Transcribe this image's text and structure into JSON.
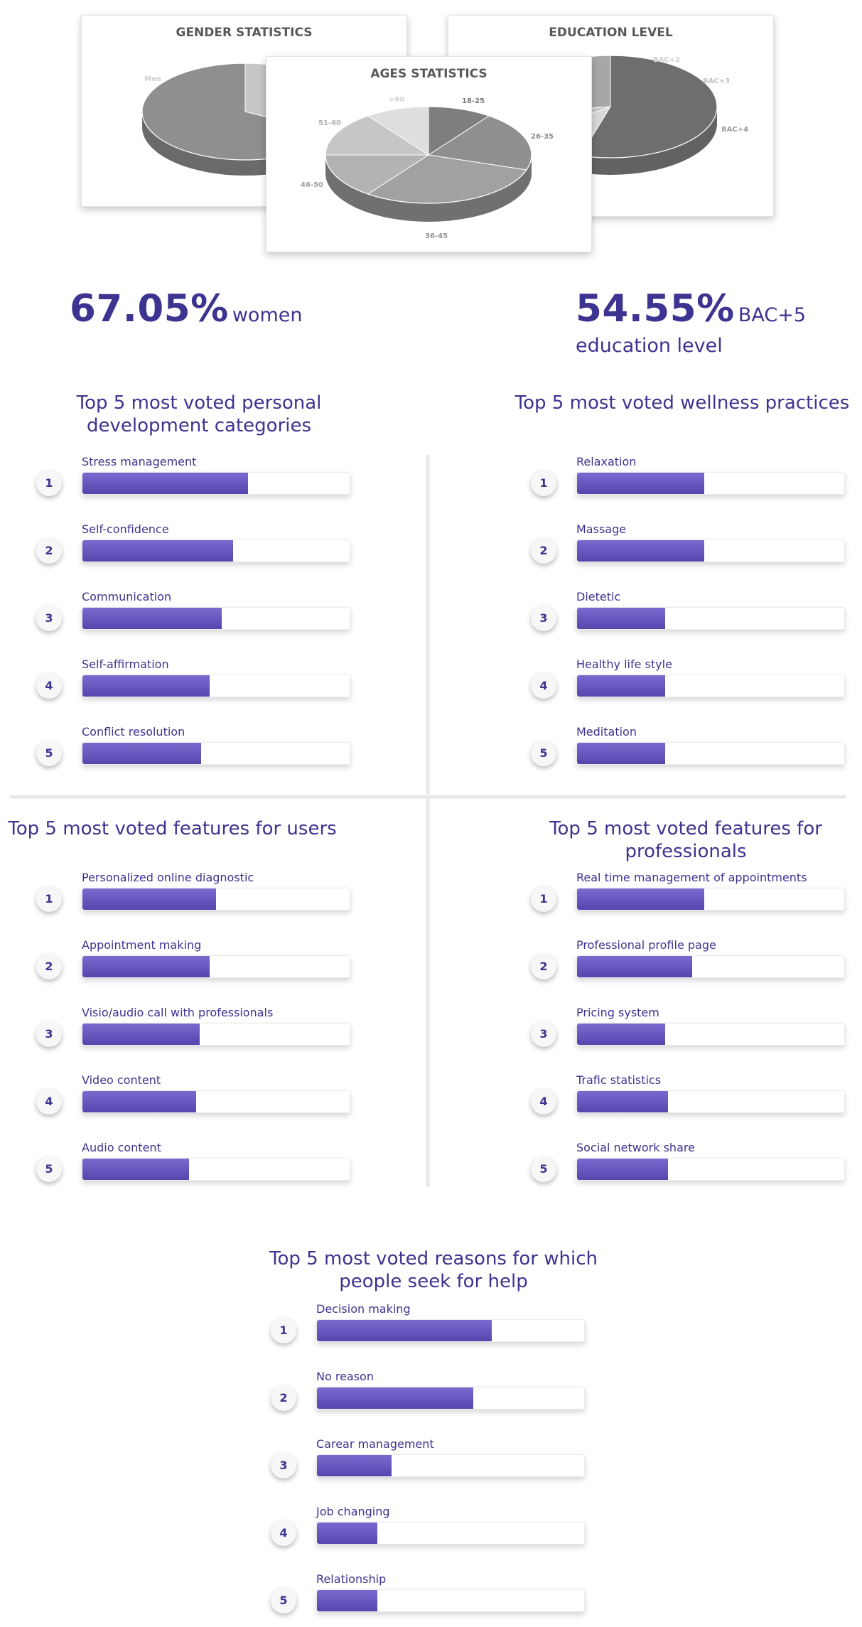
{
  "colors": {
    "primary": "#3d3390",
    "bar": "#5f4fbd",
    "pie_gray": "#9a9a9a"
  },
  "cards": {
    "gender": {
      "title": "GENDER STATISTICS",
      "labels": [
        "Men"
      ]
    },
    "education": {
      "title": "EDUCATION LEVEL",
      "labels": [
        "BAC+2",
        "BAC+3",
        "BAC+4"
      ]
    },
    "ages": {
      "title": "AGES STATISTICS",
      "labels": [
        "18-25",
        "26-35",
        "36-45",
        "46-50",
        "51-60",
        ">60"
      ]
    }
  },
  "stats": {
    "women": {
      "value": "67.05%",
      "suffix": "women"
    },
    "education": {
      "value": "54.55%",
      "suffix": "BAC+5",
      "line2": "education level"
    }
  },
  "sections": {
    "personal_dev": {
      "title": "Top 5 most voted personal development categories"
    },
    "wellness": {
      "title": "Top 5 most voted wellness practices"
    },
    "users": {
      "title": "Top 5 most voted features for users"
    },
    "pros": {
      "title": "Top 5 most voted features for professionals"
    },
    "reasons": {
      "title": "Top 5 most voted reasons for which people seek for help"
    }
  },
  "chart_data": [
    {
      "type": "pie",
      "title": "GENDER STATISTICS",
      "categories": [
        "Men",
        "Women"
      ],
      "values": [
        32.95,
        67.05
      ]
    },
    {
      "type": "pie",
      "title": "EDUCATION LEVEL",
      "categories": [
        "BAC+5",
        "BAC+2",
        "BAC+3",
        "BAC+4"
      ],
      "values": [
        54.55,
        10,
        8,
        27.45
      ]
    },
    {
      "type": "pie",
      "title": "AGES STATISTICS",
      "categories": [
        "18-25",
        "26-35",
        "36-45",
        "46-50",
        "51-60",
        ">60"
      ],
      "values": [
        10,
        20,
        30,
        15,
        15,
        10
      ]
    },
    {
      "type": "bar",
      "title": "Top 5 most voted personal development categories",
      "categories": [
        "Stress management",
        "Self-confidence",
        "Communication",
        "Self-affirmation",
        "Conflict resolution"
      ],
      "values": [
        62,
        56.5,
        52,
        47.5,
        44.5
      ],
      "ylim": [
        0,
        100
      ]
    },
    {
      "type": "bar",
      "title": "Top 5 most voted wellness practices",
      "categories": [
        "Relaxation",
        "Massage",
        "Dietetic",
        "Healthy life style",
        "Meditation"
      ],
      "values": [
        47.5,
        47.5,
        33,
        33,
        33
      ],
      "ylim": [
        0,
        100
      ]
    },
    {
      "type": "bar",
      "title": "Top 5 most voted features for users",
      "categories": [
        "Personalized online diagnostic",
        "Appointment making",
        "Visio/audio call with professionals",
        "Video content",
        "Audio content"
      ],
      "values": [
        50,
        47.5,
        44,
        42.5,
        40
      ],
      "ylim": [
        0,
        100
      ]
    },
    {
      "type": "bar",
      "title": "Top 5 most voted features for professionals",
      "categories": [
        "Real time management of appointments",
        "Professional profile page",
        "Pricing system",
        "Trafic statistics",
        "Social network share"
      ],
      "values": [
        47.5,
        43,
        33,
        34,
        34
      ],
      "ylim": [
        0,
        100
      ]
    },
    {
      "type": "bar",
      "title": "Top 5 most voted reasons for which people seek for help",
      "categories": [
        "Decision making",
        "No reason",
        "Carear management",
        "Job changing",
        "Relationship"
      ],
      "values": [
        65.5,
        58.5,
        28,
        22.5,
        22.5
      ],
      "ylim": [
        0,
        100
      ]
    }
  ]
}
